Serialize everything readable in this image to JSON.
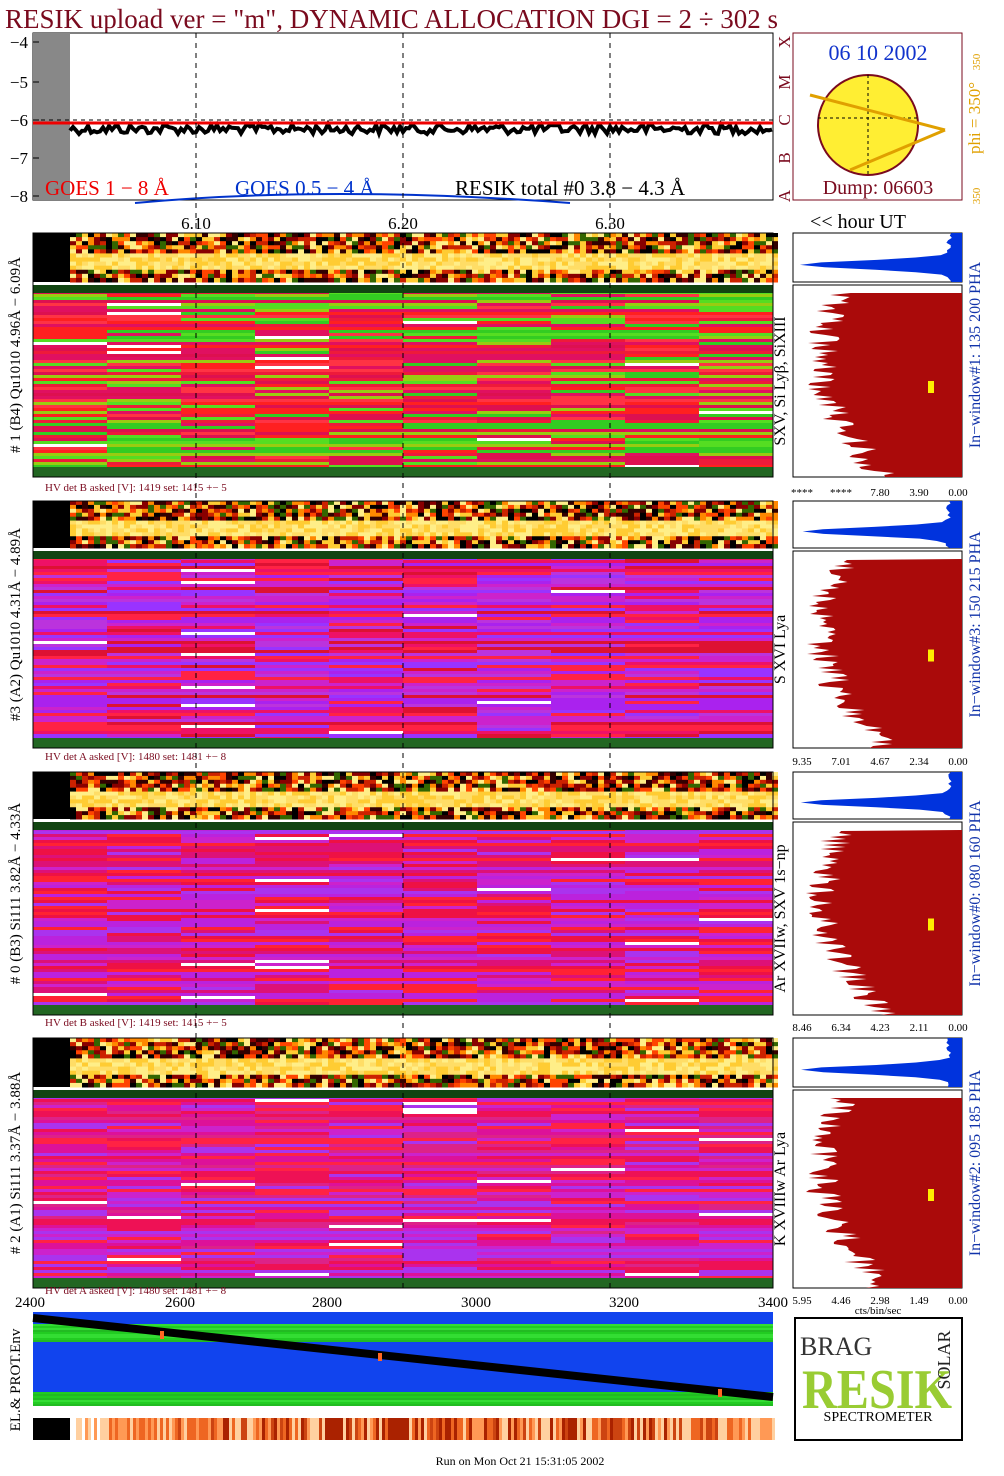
{
  "title": "RESIK upload ver = \"m\", DYNAMIC ALLOCATION  DGI =   2 ÷ 302 s",
  "goes": {
    "yticks": [
      "−4",
      "−5",
      "−6",
      "−7",
      "−8"
    ],
    "legend": [
      "GOES 1 − 8 Å",
      "GOES 0.5 − 4 Å",
      "RESIK total #0  3.8 − 4.3 Å"
    ],
    "xticks": [
      "6.10",
      "6.20",
      "6.30"
    ],
    "hour_label": "<< hour UT"
  },
  "sun": {
    "date": "06 10 2002",
    "dump": "Dump: 06603",
    "phi": "phi = 350°",
    "phi_corner": "350",
    "phi_bottom": "350",
    "classes": [
      "A",
      "B",
      "C",
      "M",
      "X"
    ]
  },
  "channels": [
    {
      "label": "# 1 (B4) Qu1010 4.96Å − 6.09Å",
      "lines": "SXV, Si Lyβ, SiXIII",
      "window": "In−window#1:  135 200 PHA",
      "hv": "HV det B asked [V]:  1419 set:  1415  +−    5",
      "pha_ticks": [
        "****",
        "****",
        "7.80",
        "3.90",
        "0.00"
      ]
    },
    {
      "label": "#3 (A2) Qu1010  4.31Å − 4.89Å",
      "lines": "S XVI Lya",
      "window": "In−window#3:  150 215 PHA",
      "hv": "HV det A asked [V]:  1480 set:  1481  +−    8",
      "pha_ticks": [
        "9.35",
        "7.01",
        "4.67",
        "2.34",
        "0.00"
      ]
    },
    {
      "label": "# 0 (B3) Si111  3.82Å − 4.33Å",
      "lines": "Ar XVIIw,  SXV 1s−np",
      "window": "In−window#0:  080 160 PHA",
      "hv": "HV det B asked [V]:  1419 set:  1415  +−    5",
      "pha_ticks": [
        "8.46",
        "6.34",
        "4.23",
        "2.11",
        "0.00"
      ]
    },
    {
      "label": "# 2 (A1) Si111  3.37Å − 3.88Å",
      "lines": "K XVIIIw   Ar Lya",
      "window": "In−window#2:  095 185 PHA",
      "hv": "HV det A asked [V]:  1480 set:  1481  +−    8",
      "pha_ticks": [
        "5.95",
        "4.46",
        "2.98",
        "1.49",
        "0.00"
      ]
    }
  ],
  "pha_units": "cts/bin/sec",
  "bottom": {
    "xticks": [
      "2400",
      "2600",
      "2800",
      "3000",
      "3200",
      "3400"
    ],
    "ylabel": "EL.& PROT.Env"
  },
  "logo": {
    "top": "BRAG",
    "main": "RESIK",
    "side": "SOLAR",
    "bottom": "SPECTROMETER"
  },
  "footer": "Run on Mon Oct 21 15:31:05 2002"
}
